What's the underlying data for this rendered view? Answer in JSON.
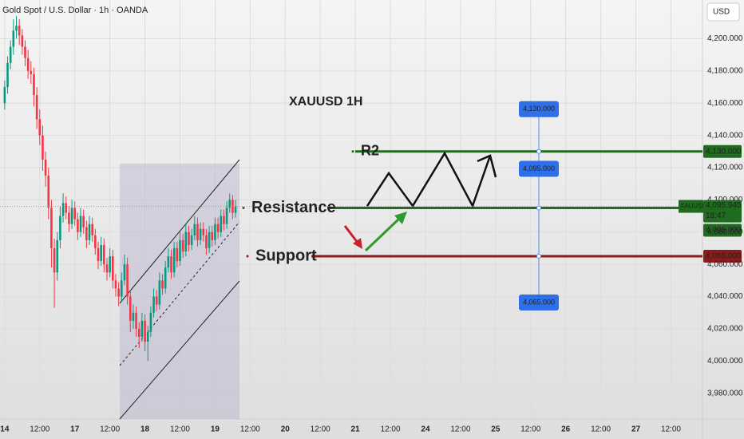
{
  "chart_data": {
    "type": "candlestick",
    "title": "Gold Spot / U.S. Dollar · 1h · OANDA",
    "annotation": "XAUUSD 1H",
    "currency": "USD",
    "up_color": "#089981",
    "down_color": "#f23645",
    "grid": true,
    "candles": [
      [
        4160,
        4174,
        4156,
        4170
      ],
      [
        4170,
        4189,
        4166,
        4185
      ],
      [
        4185,
        4199,
        4181,
        4195
      ],
      [
        4195,
        4212,
        4190,
        4205
      ],
      [
        4205,
        4214,
        4200,
        4208
      ],
      [
        4208,
        4212,
        4196,
        4202
      ],
      [
        4202,
        4206,
        4190,
        4195
      ],
      [
        4195,
        4199,
        4183,
        4188
      ],
      [
        4188,
        4193,
        4175,
        4180
      ],
      [
        4180,
        4186,
        4172,
        4178
      ],
      [
        4178,
        4182,
        4158,
        4165
      ],
      [
        4165,
        4170,
        4144,
        4150
      ],
      [
        4150,
        4156,
        4134,
        4140
      ],
      [
        4140,
        4146,
        4118,
        4125
      ],
      [
        4125,
        4130,
        4108,
        4115
      ],
      [
        4115,
        4120,
        4088,
        4095
      ],
      [
        4095,
        4100,
        4058,
        4070
      ],
      [
        4070,
        4076,
        4033,
        4055
      ],
      [
        4055,
        4080,
        4050,
        4075
      ],
      [
        4075,
        4096,
        4070,
        4090
      ],
      [
        4090,
        4104,
        4086,
        4098
      ],
      [
        4098,
        4102,
        4088,
        4092
      ],
      [
        4092,
        4096,
        4080,
        4085
      ],
      [
        4085,
        4100,
        4082,
        4095
      ],
      [
        4095,
        4099,
        4084,
        4088
      ],
      [
        4088,
        4092,
        4075,
        4080
      ],
      [
        4080,
        4095,
        4077,
        4090
      ],
      [
        4090,
        4094,
        4079,
        4083
      ],
      [
        4083,
        4087,
        4070,
        4075
      ],
      [
        4075,
        4090,
        4072,
        4085
      ],
      [
        4085,
        4089,
        4074,
        4078
      ],
      [
        4078,
        4082,
        4066,
        4070
      ],
      [
        4070,
        4074,
        4057,
        4062
      ],
      [
        4062,
        4077,
        4059,
        4072
      ],
      [
        4072,
        4076,
        4055,
        4060
      ],
      [
        4060,
        4064,
        4050,
        4055
      ],
      [
        4055,
        4070,
        4052,
        4065
      ],
      [
        4065,
        4069,
        4045,
        4050
      ],
      [
        4050,
        4054,
        4040,
        4045
      ],
      [
        4045,
        4049,
        4034,
        4040
      ],
      [
        4040,
        4055,
        4037,
        4050
      ],
      [
        4050,
        4066,
        4047,
        4060
      ],
      [
        4060,
        4064,
        4035,
        4040
      ],
      [
        4040,
        4044,
        4018,
        4025
      ],
      [
        4025,
        4035,
        4020,
        4030
      ],
      [
        4030,
        4034,
        4015,
        4020
      ],
      [
        4020,
        4024,
        4008,
        4015
      ],
      [
        4015,
        4030,
        4012,
        4025
      ],
      [
        4025,
        4029,
        4006,
        4012
      ],
      [
        4012,
        4022,
        4000,
        4018
      ],
      [
        4018,
        4034,
        4015,
        4030
      ],
      [
        4030,
        4045,
        4027,
        4040
      ],
      [
        4040,
        4044,
        4031,
        4035
      ],
      [
        4035,
        4055,
        4032,
        4050
      ],
      [
        4050,
        4054,
        4041,
        4045
      ],
      [
        4045,
        4062,
        4042,
        4058
      ],
      [
        4058,
        4070,
        4055,
        4065
      ],
      [
        4065,
        4069,
        4051,
        4055
      ],
      [
        4055,
        4074,
        4052,
        4070
      ],
      [
        4070,
        4074,
        4058,
        4062
      ],
      [
        4062,
        4080,
        4059,
        4075
      ],
      [
        4075,
        4079,
        4064,
        4068
      ],
      [
        4068,
        4085,
        4065,
        4080
      ],
      [
        4080,
        4084,
        4068,
        4072
      ],
      [
        4072,
        4082,
        4069,
        4078
      ],
      [
        4078,
        4090,
        4075,
        4085
      ],
      [
        4085,
        4089,
        4071,
        4075
      ],
      [
        4075,
        4086,
        4072,
        4082
      ],
      [
        4082,
        4086,
        4074,
        4078
      ],
      [
        4078,
        4082,
        4066,
        4070
      ],
      [
        4070,
        4084,
        4067,
        4080
      ],
      [
        4080,
        4084,
        4071,
        4075
      ],
      [
        4075,
        4089,
        4072,
        4085
      ],
      [
        4085,
        4089,
        4076,
        4080
      ],
      [
        4080,
        4094,
        4077,
        4090
      ],
      [
        4090,
        4094,
        4081,
        4085
      ],
      [
        4085,
        4099,
        4082,
        4095
      ],
      [
        4095,
        4104,
        4092,
        4100
      ],
      [
        4100,
        4103,
        4088,
        4092
      ],
      [
        4092,
        4100,
        4089,
        4096
      ]
    ],
    "ylim": [
      3964,
      4224
    ],
    "yticks": [
      {
        "value": 3980,
        "label": "3,980.000"
      },
      {
        "value": 4000,
        "label": "4,000.000"
      },
      {
        "value": 4020,
        "label": "4,020.000"
      },
      {
        "value": 4040,
        "label": "4,040.000"
      },
      {
        "value": 4060,
        "label": "4,060.000"
      },
      {
        "value": 4080,
        "label": "4,080.000"
      },
      {
        "value": 4100,
        "label": "4,100.000"
      },
      {
        "value": 4120,
        "label": "4,120.000"
      },
      {
        "value": 4140,
        "label": "4,140.000"
      },
      {
        "value": 4160,
        "label": "4,160.000"
      },
      {
        "value": 4180,
        "label": "4,180.000"
      },
      {
        "value": 4200,
        "label": "4,200.000"
      }
    ],
    "xlim": [
      -1.6,
      238.8
    ],
    "xticks": [
      {
        "value": 0,
        "label": "14"
      },
      {
        "value": 12,
        "label": "12:00"
      },
      {
        "value": 24,
        "label": "17"
      },
      {
        "value": 36,
        "label": "12:00"
      },
      {
        "value": 48,
        "label": "18"
      },
      {
        "value": 60,
        "label": "12:00"
      },
      {
        "value": 72,
        "label": "19"
      },
      {
        "value": 84,
        "label": "12:00"
      },
      {
        "value": 96,
        "label": "20"
      },
      {
        "value": 108,
        "label": "12:00"
      },
      {
        "value": 120,
        "label": "21"
      },
      {
        "value": 132,
        "label": "12:00"
      },
      {
        "value": 144,
        "label": "24"
      },
      {
        "value": 156,
        "label": "12:00"
      },
      {
        "value": 168,
        "label": "25"
      },
      {
        "value": 180,
        "label": "12:00"
      },
      {
        "value": 192,
        "label": "26"
      },
      {
        "value": 204,
        "label": "12:00"
      },
      {
        "value": 216,
        "label": "27"
      },
      {
        "value": 228,
        "label": "12:00"
      }
    ],
    "levels": [
      {
        "name": "R2",
        "value": 4130,
        "label": "4,130.000",
        "color": "#1f6b1f"
      },
      {
        "name": "Resistance",
        "value": 4095,
        "label": "4,095.000",
        "color": "#1f6b1f"
      },
      {
        "name": "Support",
        "value": 4065,
        "label": "4,065.000",
        "color": "#8b1c1c"
      }
    ],
    "measure_labels": [
      {
        "value": 4130,
        "label": "4,130.000"
      },
      {
        "value": 4095,
        "label": "4,095.000"
      },
      {
        "value": 4065,
        "label": "4,065.000"
      }
    ],
    "last_price": {
      "symbol": "XAUUSD",
      "value": 4095.945,
      "label": "4,095.945",
      "countdown": "18:47"
    }
  }
}
